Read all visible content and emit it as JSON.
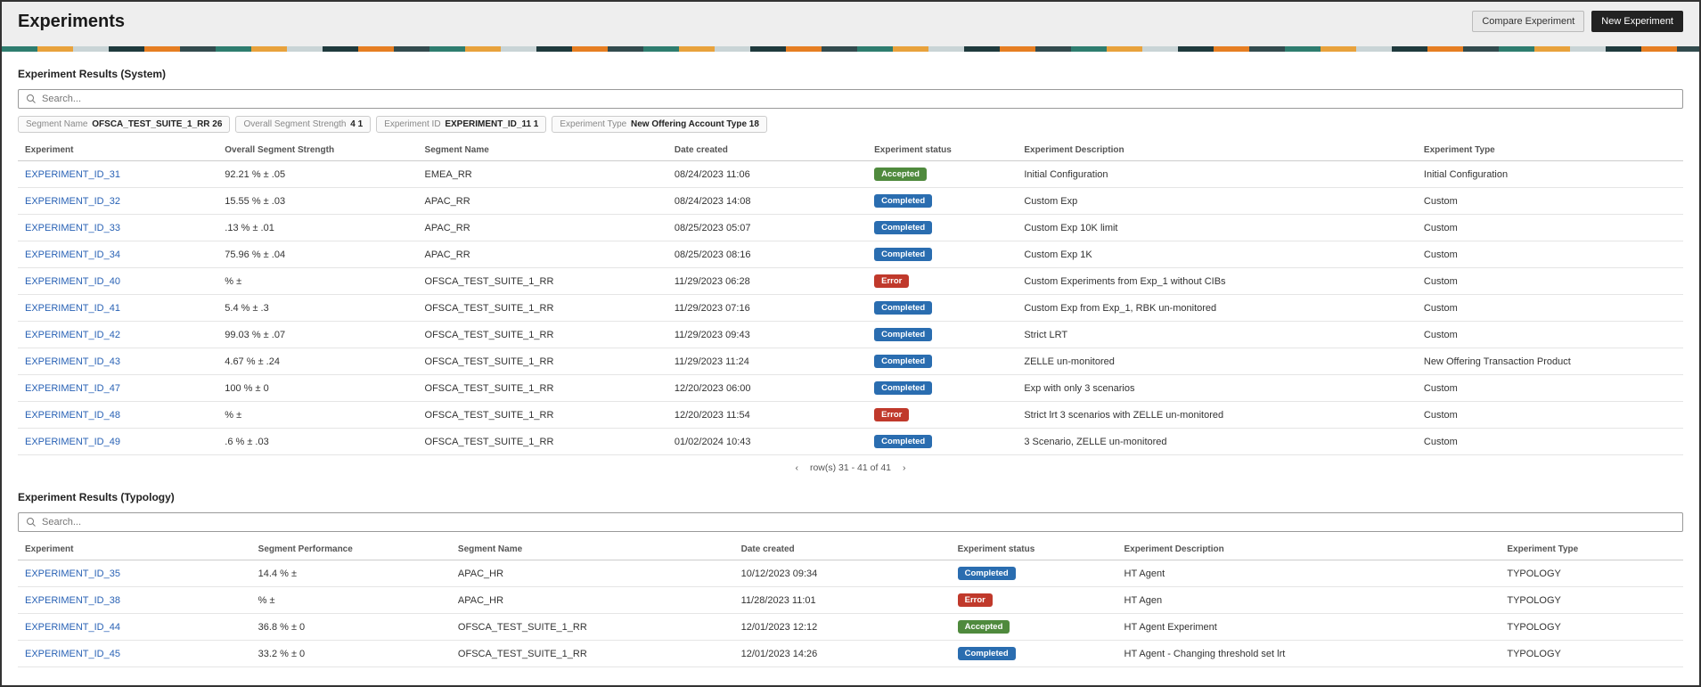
{
  "header": {
    "title": "Experiments",
    "compare_label": "Compare Experiment",
    "new_label": "New Experiment"
  },
  "colors": {
    "page_bg": "#eeeeee",
    "link": "#2962b5",
    "badge_accepted": "#4f8a3d",
    "badge_completed": "#2a6db0",
    "badge_error": "#c0392b",
    "border": "#cccccc",
    "text": "#222222"
  },
  "system_section": {
    "title": "Experiment Results (System)",
    "search_placeholder": "Search...",
    "chips": [
      {
        "label": "Segment Name",
        "value": "OFSCA_TEST_SUITE_1_RR  26"
      },
      {
        "label": "Overall Segment Strength",
        "value": "4  1"
      },
      {
        "label": "Experiment ID",
        "value": "EXPERIMENT_ID_11  1"
      },
      {
        "label": "Experiment Type",
        "value": "New Offering Account Type  18"
      }
    ],
    "columns": [
      "Experiment",
      "Overall Segment Strength",
      "Segment Name",
      "Date created",
      "Experiment status",
      "Experiment Description",
      "Experiment Type"
    ],
    "col_widths": [
      "12%",
      "12%",
      "15%",
      "12%",
      "9%",
      "24%",
      "16%"
    ],
    "rows": [
      {
        "id": "EXPERIMENT_ID_31",
        "strength": "92.21 % ± .05",
        "segment": "EMEA_RR",
        "date": "08/24/2023 11:06",
        "status": "Accepted",
        "desc": "Initial Configuration",
        "type": "Initial Configuration"
      },
      {
        "id": "EXPERIMENT_ID_32",
        "strength": "15.55 % ± .03",
        "segment": "APAC_RR",
        "date": "08/24/2023 14:08",
        "status": "Completed",
        "desc": "Custom Exp",
        "type": "Custom"
      },
      {
        "id": "EXPERIMENT_ID_33",
        "strength": ".13 % ± .01",
        "segment": "APAC_RR",
        "date": "08/25/2023 05:07",
        "status": "Completed",
        "desc": "Custom Exp 10K limit",
        "type": "Custom"
      },
      {
        "id": "EXPERIMENT_ID_34",
        "strength": "75.96 % ± .04",
        "segment": "APAC_RR",
        "date": "08/25/2023 08:16",
        "status": "Completed",
        "desc": "Custom Exp 1K",
        "type": "Custom"
      },
      {
        "id": "EXPERIMENT_ID_40",
        "strength": "% ±",
        "segment": "OFSCA_TEST_SUITE_1_RR",
        "date": "11/29/2023 06:28",
        "status": "Error",
        "desc": "Custom Experiments from Exp_1 without CIBs",
        "type": "Custom"
      },
      {
        "id": "EXPERIMENT_ID_41",
        "strength": "5.4 % ± .3",
        "segment": "OFSCA_TEST_SUITE_1_RR",
        "date": "11/29/2023 07:16",
        "status": "Completed",
        "desc": "Custom Exp from Exp_1, RBK un-monitored",
        "type": "Custom"
      },
      {
        "id": "EXPERIMENT_ID_42",
        "strength": "99.03 % ± .07",
        "segment": "OFSCA_TEST_SUITE_1_RR",
        "date": "11/29/2023 09:43",
        "status": "Completed",
        "desc": "Strict LRT",
        "type": "Custom"
      },
      {
        "id": "EXPERIMENT_ID_43",
        "strength": "4.67 % ± .24",
        "segment": "OFSCA_TEST_SUITE_1_RR",
        "date": "11/29/2023 11:24",
        "status": "Completed",
        "desc": "ZELLE un-monitored",
        "type": "New Offering Transaction Product"
      },
      {
        "id": "EXPERIMENT_ID_47",
        "strength": "100 % ± 0",
        "segment": "OFSCA_TEST_SUITE_1_RR",
        "date": "12/20/2023 06:00",
        "status": "Completed",
        "desc": "Exp with only 3 scenarios",
        "type": "Custom"
      },
      {
        "id": "EXPERIMENT_ID_48",
        "strength": "% ±",
        "segment": "OFSCA_TEST_SUITE_1_RR",
        "date": "12/20/2023 11:54",
        "status": "Error",
        "desc": "Strict lrt 3 scenarios with ZELLE un-monitored",
        "type": "Custom"
      },
      {
        "id": "EXPERIMENT_ID_49",
        "strength": ".6 % ± .03",
        "segment": "OFSCA_TEST_SUITE_1_RR",
        "date": "01/02/2024 10:43",
        "status": "Completed",
        "desc": "3 Scenario, ZELLE un-monitored",
        "type": "Custom"
      }
    ],
    "pager_text": "row(s) 31 - 41 of 41",
    "pager_prev": "‹",
    "pager_next": "›"
  },
  "typology_section": {
    "title": "Experiment Results (Typology)",
    "search_placeholder": "Search...",
    "columns": [
      "Experiment",
      "Segment Performance",
      "Segment Name",
      "Date created",
      "Experiment status",
      "Experiment Description",
      "Experiment Type"
    ],
    "col_widths": [
      "14%",
      "12%",
      "17%",
      "13%",
      "10%",
      "23%",
      "11%"
    ],
    "rows": [
      {
        "id": "EXPERIMENT_ID_35",
        "perf": "14.4 % ±",
        "segment": "APAC_HR",
        "date": "10/12/2023 09:34",
        "status": "Completed",
        "desc": "HT Agent",
        "type": "TYPOLOGY"
      },
      {
        "id": "EXPERIMENT_ID_38",
        "perf": "% ±",
        "segment": "APAC_HR",
        "date": "11/28/2023 11:01",
        "status": "Error",
        "desc": "HT Agen",
        "type": "TYPOLOGY"
      },
      {
        "id": "EXPERIMENT_ID_44",
        "perf": "36.8 % ± 0",
        "segment": "OFSCA_TEST_SUITE_1_RR",
        "date": "12/01/2023 12:12",
        "status": "Accepted",
        "desc": "HT Agent Experiment",
        "type": "TYPOLOGY"
      },
      {
        "id": "EXPERIMENT_ID_45",
        "perf": "33.2 % ± 0",
        "segment": "OFSCA_TEST_SUITE_1_RR",
        "date": "12/01/2023 14:26",
        "status": "Completed",
        "desc": "HT Agent - Changing threshold set lrt",
        "type": "TYPOLOGY"
      }
    ]
  },
  "status_badge_class": {
    "Accepted": "badge-accepted",
    "Completed": "badge-completed",
    "Error": "badge-error"
  }
}
